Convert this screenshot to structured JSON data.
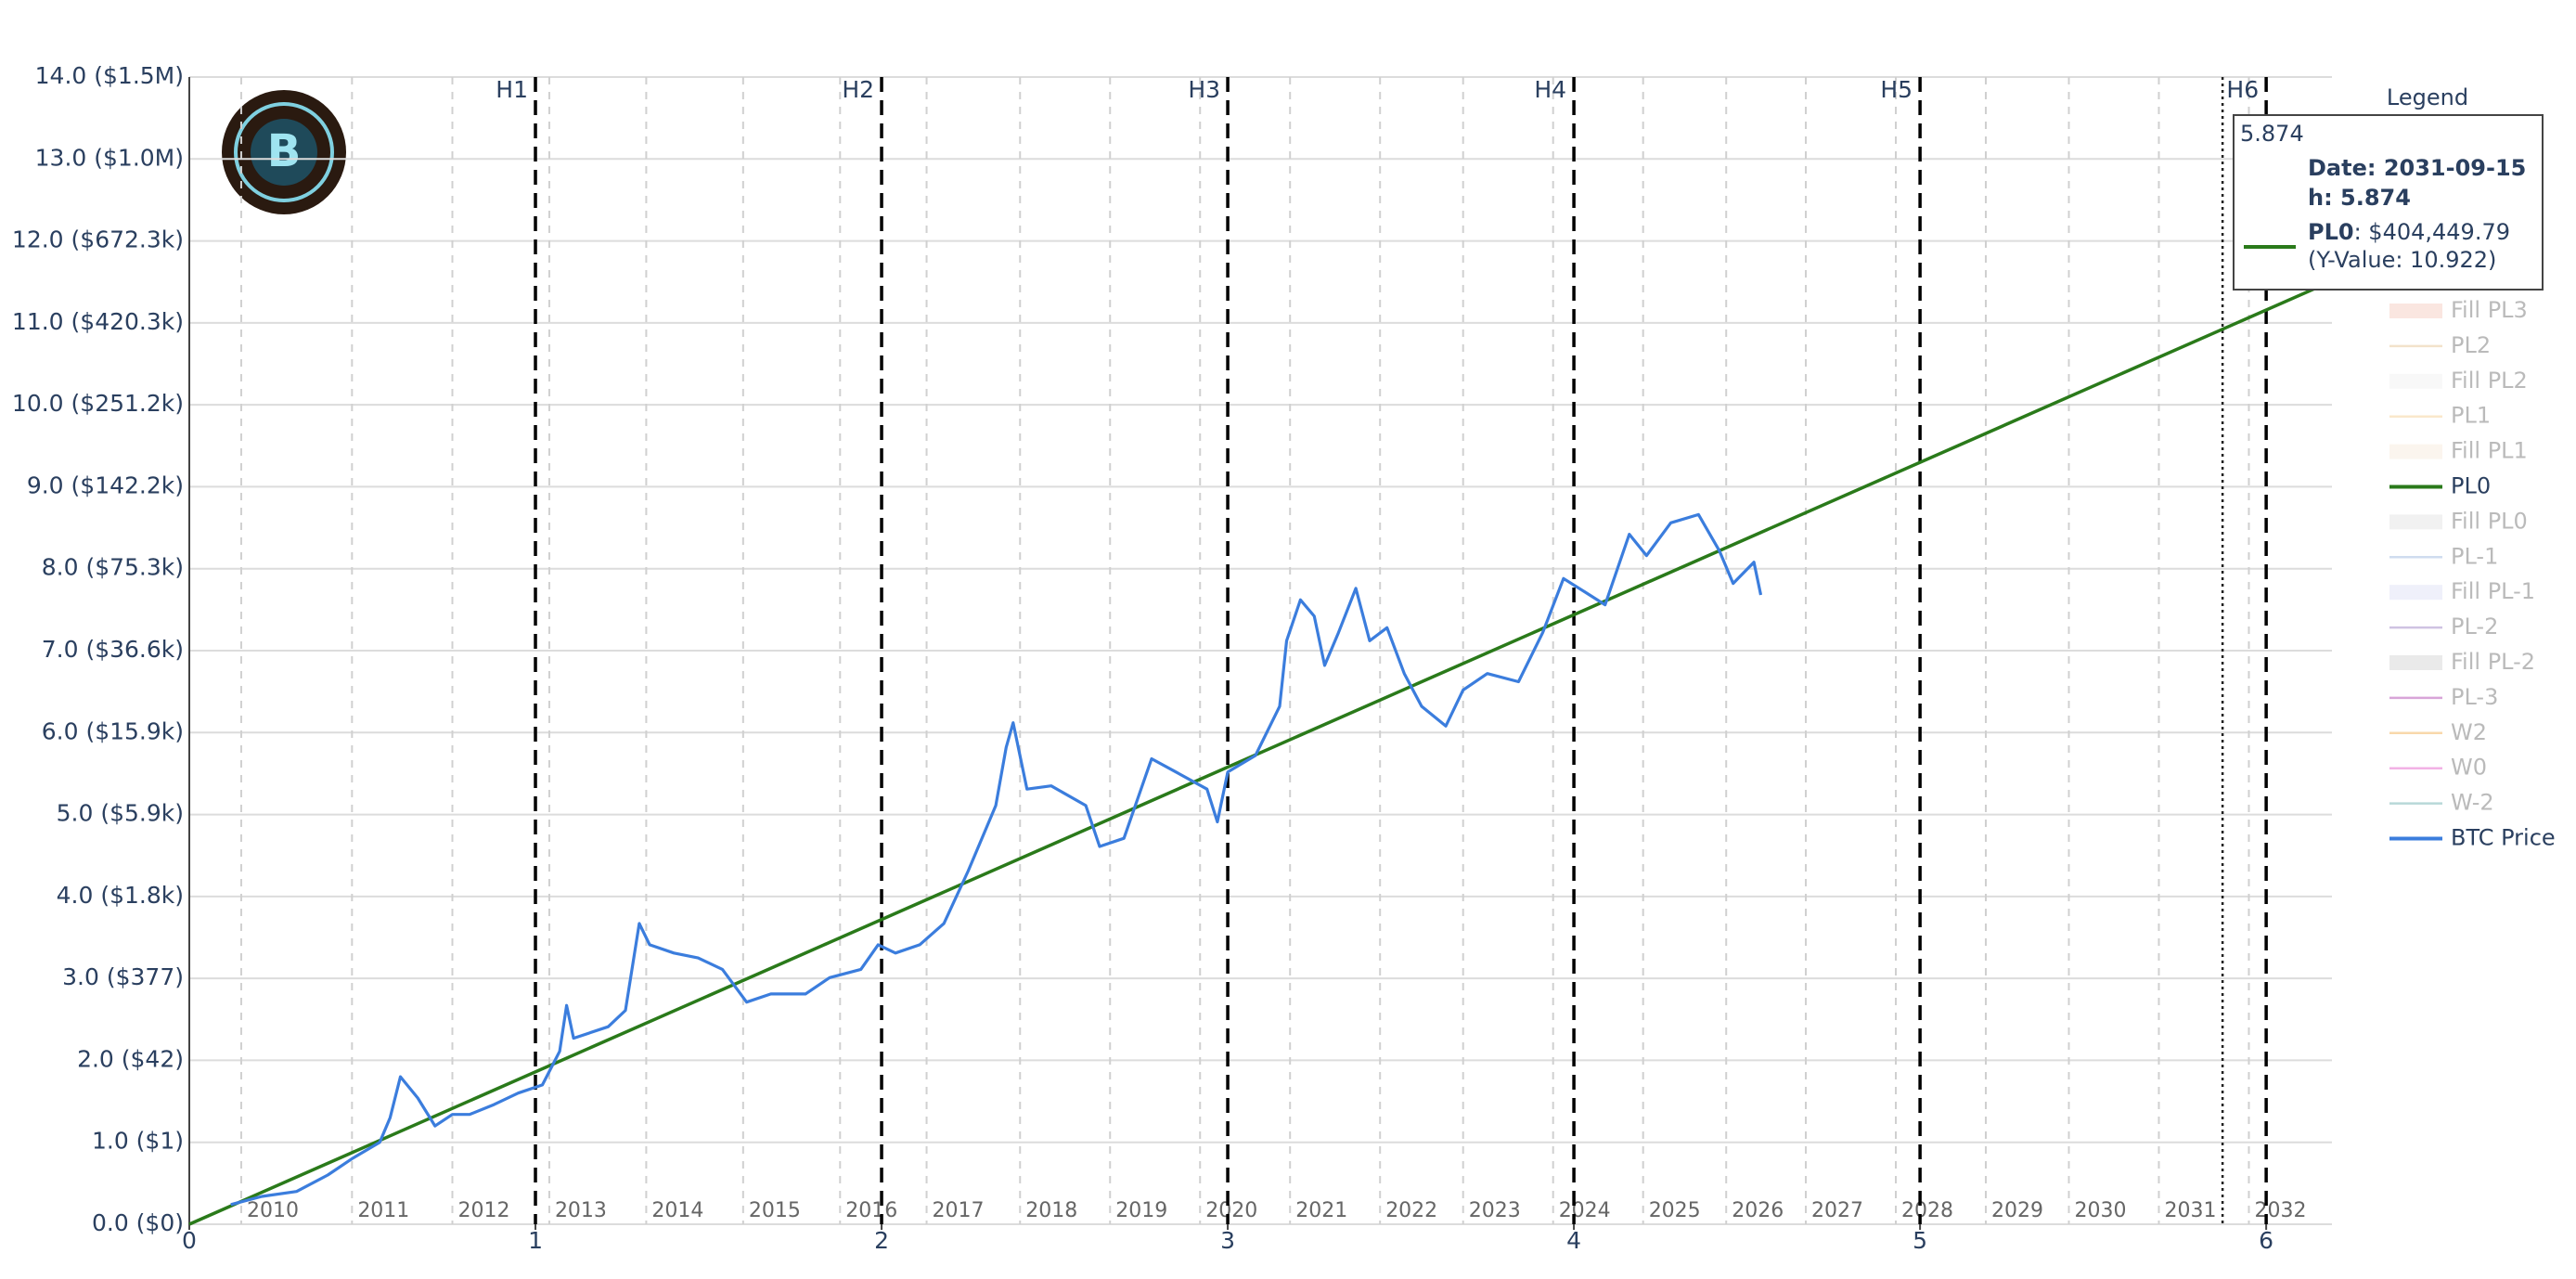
{
  "chart_data": {
    "type": "line",
    "xlim": [
      0,
      6.19
    ],
    "xticks": [
      0,
      1,
      2,
      3,
      4,
      5,
      6
    ],
    "ylim": [
      0,
      14
    ],
    "yticks": [
      {
        "value": 0,
        "label": "0.0 ($0)"
      },
      {
        "value": 1,
        "label": "1.0 ($1)"
      },
      {
        "value": 2,
        "label": "2.0 ($42)"
      },
      {
        "value": 3,
        "label": "3.0 ($377)"
      },
      {
        "value": 4,
        "label": "4.0 ($1.8k)"
      },
      {
        "value": 5,
        "label": "5.0 ($5.9k)"
      },
      {
        "value": 6,
        "label": "6.0 ($15.9k)"
      },
      {
        "value": 7,
        "label": "7.0 ($36.6k)"
      },
      {
        "value": 8,
        "label": "8.0 ($75.3k)"
      },
      {
        "value": 9,
        "label": "9.0 ($142.2k)"
      },
      {
        "value": 10,
        "label": "10.0 ($251.2k)"
      },
      {
        "value": 11,
        "label": "11.0 ($420.3k)"
      },
      {
        "value": 12,
        "label": "12.0 ($672.3k)"
      },
      {
        "value": 13,
        "label": "13.0 ($1.0M)"
      },
      {
        "value": 14,
        "label": "14.0 ($1.5M)"
      }
    ],
    "grid": true,
    "years": {
      "x": [
        0.15,
        0.47,
        0.76,
        1.04,
        1.32,
        1.6,
        1.88,
        2.13,
        2.4,
        2.66,
        2.92,
        3.18,
        3.44,
        3.68,
        3.94,
        4.2,
        4.44,
        4.67,
        4.93,
        5.19,
        5.43,
        5.69,
        5.95
      ],
      "labels": [
        "2010",
        "2011",
        "2012",
        "2013",
        "2014",
        "2015",
        "2016",
        "2017",
        "2018",
        "2019",
        "2020",
        "2021",
        "2022",
        "2023",
        "2024",
        "2025",
        "2026",
        "2027",
        "2028",
        "2029",
        "2030",
        "2031",
        "2032"
      ]
    },
    "halvings": {
      "x": [
        1,
        2,
        3,
        4,
        5,
        6
      ],
      "labels": [
        "H1",
        "H2",
        "H3",
        "H4",
        "H5",
        "H6"
      ]
    },
    "legend_title": "Legend",
    "series": [
      {
        "name": "Fill PL3",
        "color": "#f3c2b4",
        "kind": "fill",
        "visible": false
      },
      {
        "name": "PL2",
        "color": "#e3b880",
        "kind": "line",
        "visible": false
      },
      {
        "name": "Fill PL2",
        "color": "#eeeeee",
        "kind": "fill",
        "visible": false
      },
      {
        "name": "PL1",
        "color": "#f5c77e",
        "kind": "line",
        "visible": false
      },
      {
        "name": "Fill PL1",
        "color": "#f6e8d6",
        "kind": "fill",
        "visible": false
      },
      {
        "name": "PL0",
        "color": "#2a7a1a",
        "kind": "line",
        "visible": true,
        "x": [
          0,
          6.19
        ],
        "values": [
          0,
          11.51
        ]
      },
      {
        "name": "Fill PL0",
        "color": "#dddddd",
        "kind": "fill",
        "visible": false
      },
      {
        "name": "PL-1",
        "color": "#8aa9d8",
        "kind": "line",
        "visible": false
      },
      {
        "name": "Fill PL-1",
        "color": "#d8dcf5",
        "kind": "fill",
        "visible": false
      },
      {
        "name": "PL-2",
        "color": "#8a6ab8",
        "kind": "line",
        "visible": false
      },
      {
        "name": "Fill PL-2",
        "color": "#cccccc",
        "kind": "fill",
        "visible": false
      },
      {
        "name": "PL-3",
        "color": "#a020a0",
        "kind": "line",
        "visible": false
      },
      {
        "name": "W2",
        "color": "#f0a030",
        "kind": "line",
        "visible": false
      },
      {
        "name": "W0",
        "color": "#e040c0",
        "kind": "line",
        "visible": false
      },
      {
        "name": "W-2",
        "color": "#50a0a0",
        "kind": "line",
        "visible": false
      },
      {
        "name": "BTC Price",
        "color": "#3b7ddd",
        "kind": "line",
        "visible": true,
        "x": [
          0.12,
          0.21,
          0.31,
          0.4,
          0.47,
          0.55,
          0.58,
          0.61,
          0.66,
          0.71,
          0.76,
          0.81,
          0.88,
          0.95,
          1.02,
          1.07,
          1.09,
          1.11,
          1.21,
          1.26,
          1.3,
          1.33,
          1.4,
          1.47,
          1.54,
          1.61,
          1.68,
          1.78,
          1.85,
          1.94,
          1.99,
          2.04,
          2.11,
          2.18,
          2.25,
          2.33,
          2.36,
          2.38,
          2.42,
          2.49,
          2.59,
          2.63,
          2.7,
          2.78,
          2.85,
          2.94,
          2.97,
          3.0,
          3.08,
          3.15,
          3.17,
          3.21,
          3.25,
          3.28,
          3.32,
          3.37,
          3.41,
          3.46,
          3.51,
          3.56,
          3.63,
          3.68,
          3.75,
          3.84,
          3.91,
          3.97,
          4.03,
          4.09,
          4.16,
          4.21,
          4.28,
          4.36,
          4.42,
          4.46,
          4.52,
          4.54
        ],
        "values": [
          0.24,
          0.34,
          0.4,
          0.6,
          0.8,
          1.0,
          1.3,
          1.8,
          1.54,
          1.2,
          1.34,
          1.34,
          1.46,
          1.6,
          1.7,
          2.11,
          2.67,
          2.27,
          2.41,
          2.61,
          3.67,
          3.41,
          3.31,
          3.25,
          3.11,
          2.71,
          2.81,
          2.81,
          3.01,
          3.11,
          3.41,
          3.31,
          3.41,
          3.67,
          4.31,
          5.11,
          5.82,
          6.12,
          5.31,
          5.35,
          5.11,
          4.61,
          4.71,
          5.68,
          5.52,
          5.31,
          4.91,
          5.52,
          5.72,
          6.32,
          7.12,
          7.62,
          7.42,
          6.82,
          7.22,
          7.76,
          7.12,
          7.28,
          6.72,
          6.32,
          6.08,
          6.52,
          6.72,
          6.62,
          7.22,
          7.88,
          7.72,
          7.56,
          8.42,
          8.16,
          8.56,
          8.66,
          8.22,
          7.82,
          8.08,
          7.68
        ]
      }
    ],
    "hover": {
      "x": 5.874,
      "lines": [
        "Date: 2031-09-15",
        "h: 5.874"
      ],
      "series": "PL0",
      "value_text": ": $404,449.79",
      "y_value_text": "(Y-Value: 10.922)"
    }
  }
}
